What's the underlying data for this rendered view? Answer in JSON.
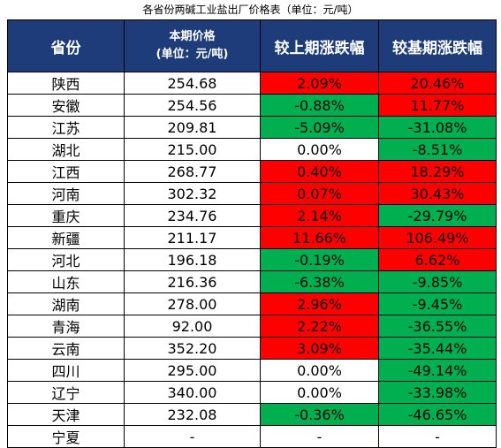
{
  "title": "各省份两碱工业盐出厂价格表（单位：元/吨）",
  "headers": {
    "province": "省份",
    "price_line1": "本期价格",
    "price_line2": "(单位：元/吨)",
    "mom": "较上期涨跌幅",
    "yoy": "较基期涨跌幅"
  },
  "colors": {
    "header_bg": "#1f3c7a",
    "up": "#ff0000",
    "down": "#00b050",
    "flat": "#ffffff"
  },
  "rows": [
    {
      "province": "陕西",
      "price": "254.68",
      "mom": "2.09%",
      "mom_dir": "up",
      "yoy": "20.46%",
      "yoy_dir": "up"
    },
    {
      "province": "安徽",
      "price": "254.56",
      "mom": "-0.88%",
      "mom_dir": "down",
      "yoy": "11.77%",
      "yoy_dir": "up"
    },
    {
      "province": "江苏",
      "price": "209.81",
      "mom": "-5.09%",
      "mom_dir": "down",
      "yoy": "-31.08%",
      "yoy_dir": "down"
    },
    {
      "province": "湖北",
      "price": "215.00",
      "mom": "0.00%",
      "mom_dir": "flat",
      "yoy": "-8.51%",
      "yoy_dir": "down"
    },
    {
      "province": "江西",
      "price": "268.77",
      "mom": "0.40%",
      "mom_dir": "up",
      "yoy": "18.29%",
      "yoy_dir": "up"
    },
    {
      "province": "河南",
      "price": "302.32",
      "mom": "0.07%",
      "mom_dir": "up",
      "yoy": "30.43%",
      "yoy_dir": "up"
    },
    {
      "province": "重庆",
      "price": "234.76",
      "mom": "2.14%",
      "mom_dir": "up",
      "yoy": "-29.79%",
      "yoy_dir": "down"
    },
    {
      "province": "新疆",
      "price": "211.17",
      "mom": "11.66%",
      "mom_dir": "up",
      "yoy": "106.49%",
      "yoy_dir": "up"
    },
    {
      "province": "河北",
      "price": "196.18",
      "mom": "-0.19%",
      "mom_dir": "down",
      "yoy": "6.62%",
      "yoy_dir": "up"
    },
    {
      "province": "山东",
      "price": "216.36",
      "mom": "-6.38%",
      "mom_dir": "down",
      "yoy": "-9.85%",
      "yoy_dir": "down"
    },
    {
      "province": "湖南",
      "price": "278.00",
      "mom": "2.96%",
      "mom_dir": "up",
      "yoy": "-9.45%",
      "yoy_dir": "down"
    },
    {
      "province": "青海",
      "price": "92.00",
      "mom": "2.22%",
      "mom_dir": "up",
      "yoy": "-36.55%",
      "yoy_dir": "down"
    },
    {
      "province": "云南",
      "price": "352.20",
      "mom": "3.09%",
      "mom_dir": "up",
      "yoy": "-35.44%",
      "yoy_dir": "down"
    },
    {
      "province": "四川",
      "price": "295.00",
      "mom": "0.00%",
      "mom_dir": "flat",
      "yoy": "-49.14%",
      "yoy_dir": "down"
    },
    {
      "province": "辽宁",
      "price": "340.00",
      "mom": "0.00%",
      "mom_dir": "flat",
      "yoy": "-33.98%",
      "yoy_dir": "down"
    },
    {
      "province": "天津",
      "price": "232.08",
      "mom": "-0.36%",
      "mom_dir": "down",
      "yoy": "-46.65%",
      "yoy_dir": "down"
    },
    {
      "province": "宁夏",
      "price": "-",
      "mom": "-",
      "mom_dir": "flat",
      "yoy": "-",
      "yoy_dir": "flat"
    }
  ]
}
